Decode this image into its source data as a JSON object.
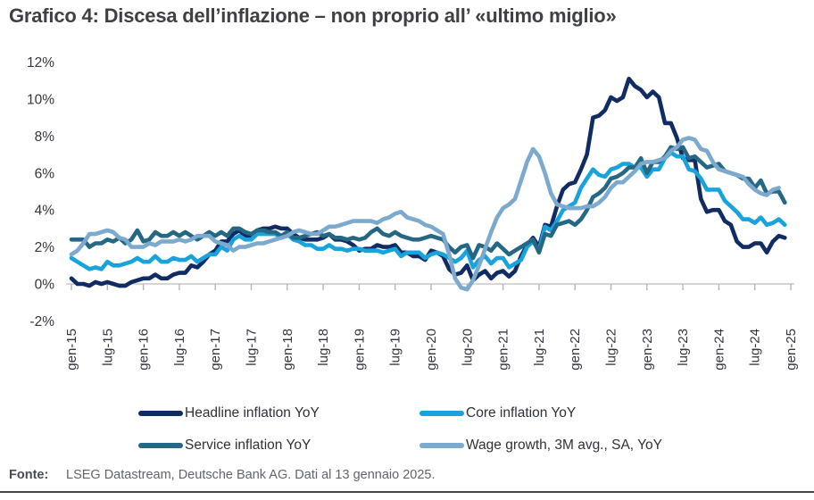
{
  "title": "Grafico 4: Discesa dell’inflazione – non proprio all’ «ultimo miglio»",
  "footer": {
    "label": "Fonte:",
    "text": "LSEG Datastream, Deutsche Bank AG. Dati al 13 gennaio 2025."
  },
  "chart_data": {
    "type": "line",
    "title": "Grafico 4: Discesa dell’inflazione – non proprio all’ «ultimo miglio»",
    "xlabel": "",
    "ylabel": "",
    "ylim": [
      -2,
      12
    ],
    "grid": false,
    "legend_position": "bottom",
    "x_unit": "monthly, gen-15 through dic-24",
    "x_tick_every_months": 6,
    "x_tick_labels": [
      "gen-15",
      "lug-15",
      "gen-16",
      "lug-16",
      "gen-17",
      "lug-17",
      "gen-18",
      "lug-18",
      "gen-19",
      "lug-19",
      "gen-20",
      "lug-20",
      "gen-21",
      "lug-21",
      "gen-22",
      "lug-22",
      "gen-23",
      "lug-23",
      "gen-24",
      "lug-24",
      "gen-25"
    ],
    "y_ticks": [
      {
        "label": "12%",
        "value": 12
      },
      {
        "label": "10%",
        "value": 10
      },
      {
        "label": "8%",
        "value": 8
      },
      {
        "label": "6%",
        "value": 6
      },
      {
        "label": "4%",
        "value": 4
      },
      {
        "label": "2%",
        "value": 2
      },
      {
        "label": "0%",
        "value": 0
      },
      {
        "label": "-2%",
        "value": -2
      }
    ],
    "series": [
      {
        "name": "Headline inflation YoY",
        "color": "#102c63",
        "values": [
          0.3,
          0.0,
          0.0,
          -0.1,
          0.1,
          0.0,
          0.1,
          0.0,
          -0.1,
          -0.1,
          0.1,
          0.2,
          0.3,
          0.3,
          0.5,
          0.3,
          0.3,
          0.5,
          0.6,
          0.6,
          1.0,
          0.9,
          1.2,
          1.6,
          1.8,
          2.3,
          2.3,
          2.7,
          2.9,
          2.6,
          2.6,
          2.9,
          3.0,
          3.0,
          3.1,
          3.0,
          3.0,
          2.7,
          2.5,
          2.4,
          2.4,
          2.4,
          2.5,
          2.7,
          2.4,
          2.4,
          2.3,
          2.1,
          1.8,
          1.9,
          1.9,
          2.1,
          2.0,
          2.0,
          2.1,
          1.7,
          1.7,
          1.5,
          1.5,
          1.3,
          1.8,
          1.7,
          1.5,
          0.8,
          0.5,
          0.6,
          1.0,
          0.2,
          0.5,
          0.7,
          0.3,
          0.6,
          0.7,
          0.4,
          0.7,
          1.5,
          2.1,
          2.5,
          2.0,
          3.2,
          3.1,
          4.2,
          5.1,
          5.4,
          5.5,
          6.2,
          7.0,
          9.0,
          9.1,
          9.4,
          10.1,
          9.9,
          10.1,
          11.1,
          10.7,
          10.5,
          10.1,
          10.4,
          10.1,
          8.7,
          8.7,
          7.9,
          6.8,
          6.7,
          6.7,
          4.6,
          3.9,
          4.0,
          4.0,
          3.4,
          3.2,
          2.3,
          2.0,
          2.0,
          2.2,
          2.2,
          1.7,
          2.3,
          2.6,
          2.5
        ]
      },
      {
        "name": "Core inflation YoY",
        "color": "#18a3dd",
        "values": [
          1.4,
          1.2,
          1.0,
          0.8,
          0.9,
          0.8,
          1.2,
          1.0,
          1.0,
          1.1,
          1.2,
          1.4,
          1.2,
          1.2,
          1.5,
          1.2,
          1.2,
          1.4,
          1.3,
          1.3,
          1.5,
          1.2,
          1.4,
          1.6,
          1.6,
          2.0,
          1.8,
          2.4,
          2.6,
          2.4,
          2.4,
          2.7,
          2.7,
          2.7,
          2.7,
          2.5,
          2.7,
          2.4,
          2.3,
          2.1,
          2.1,
          1.9,
          1.9,
          2.1,
          1.9,
          1.9,
          1.8,
          1.9,
          1.9,
          1.8,
          1.8,
          1.8,
          1.7,
          1.8,
          1.9,
          1.5,
          1.7,
          1.7,
          1.7,
          1.4,
          1.6,
          1.7,
          1.6,
          1.4,
          1.2,
          1.4,
          1.8,
          0.9,
          1.3,
          1.5,
          1.1,
          1.4,
          1.4,
          0.9,
          1.1,
          1.3,
          2.0,
          2.3,
          1.8,
          3.1,
          2.9,
          3.4,
          4.0,
          4.2,
          4.4,
          5.2,
          5.7,
          6.2,
          5.9,
          5.8,
          6.2,
          6.3,
          6.5,
          6.5,
          6.3,
          6.3,
          5.8,
          6.2,
          6.2,
          6.8,
          7.1,
          6.9,
          6.9,
          6.2,
          6.1,
          5.7,
          5.1,
          5.1,
          5.1,
          4.5,
          4.2,
          3.9,
          3.5,
          3.5,
          3.3,
          3.6,
          3.2,
          3.3,
          3.5,
          3.2
        ]
      },
      {
        "name": "Service inflation YoY",
        "color": "#266884",
        "values": [
          2.4,
          2.4,
          2.4,
          2.0,
          2.2,
          2.2,
          2.4,
          2.3,
          2.5,
          2.2,
          2.4,
          2.9,
          2.3,
          2.4,
          2.8,
          2.6,
          2.6,
          2.8,
          2.6,
          2.8,
          2.6,
          2.4,
          2.6,
          2.8,
          2.6,
          2.8,
          2.6,
          3.0,
          3.0,
          2.8,
          2.7,
          2.9,
          2.9,
          2.8,
          2.8,
          2.6,
          2.8,
          2.5,
          2.5,
          2.6,
          2.7,
          2.8,
          2.6,
          2.7,
          2.5,
          2.5,
          2.4,
          2.5,
          2.4,
          2.5,
          2.8,
          3.0,
          2.7,
          2.6,
          2.8,
          2.6,
          2.5,
          2.4,
          2.4,
          2.5,
          2.6,
          2.5,
          2.4,
          2.0,
          1.7,
          2.0,
          2.1,
          1.4,
          2.1,
          2.0,
          1.8,
          2.2,
          1.9,
          1.6,
          1.8,
          2.0,
          2.2,
          2.4,
          1.7,
          2.7,
          2.6,
          3.2,
          3.3,
          3.4,
          3.2,
          3.5,
          4.0,
          4.7,
          4.9,
          5.2,
          5.7,
          5.8,
          6.0,
          6.3,
          6.3,
          6.8,
          6.0,
          6.6,
          6.6,
          6.9,
          7.4,
          7.3,
          7.4,
          6.8,
          6.9,
          6.6,
          6.3,
          6.4,
          6.5,
          6.1,
          6.0,
          5.9,
          5.7,
          5.7,
          5.2,
          5.6,
          4.9,
          5.0,
          5.0,
          4.4
        ]
      },
      {
        "name": "Wage growth, 3M avg., SA, YoY",
        "color": "#7ca9ce",
        "values": [
          1.6,
          1.8,
          2.2,
          2.7,
          2.7,
          2.8,
          2.9,
          2.8,
          2.5,
          2.4,
          2.0,
          2.0,
          2.0,
          2.2,
          2.1,
          2.3,
          2.3,
          2.3,
          2.4,
          2.3,
          2.4,
          2.6,
          2.6,
          2.6,
          2.3,
          2.2,
          2.1,
          1.8,
          2.0,
          2.0,
          2.1,
          2.2,
          2.2,
          2.3,
          2.4,
          2.5,
          2.6,
          2.8,
          2.9,
          2.8,
          2.7,
          2.7,
          2.9,
          3.1,
          3.1,
          3.2,
          3.3,
          3.4,
          3.4,
          3.4,
          3.4,
          3.3,
          3.5,
          3.6,
          3.8,
          3.9,
          3.6,
          3.5,
          3.4,
          3.2,
          3.1,
          2.9,
          2.7,
          1.6,
          0.3,
          -0.2,
          -0.3,
          0.2,
          1.0,
          1.9,
          2.8,
          3.6,
          4.1,
          4.3,
          4.6,
          5.6,
          6.6,
          7.3,
          6.9,
          6.0,
          4.9,
          4.3,
          4.2,
          4.1,
          4.1,
          4.1,
          4.2,
          4.2,
          4.4,
          4.7,
          5.2,
          5.5,
          5.5,
          5.8,
          6.1,
          6.5,
          6.6,
          6.6,
          6.7,
          6.8,
          7.2,
          7.4,
          7.8,
          7.9,
          7.8,
          7.3,
          7.2,
          6.6,
          6.2,
          6.1,
          6.0,
          5.9,
          5.8,
          5.4,
          5.1,
          4.9,
          4.8,
          5.1,
          5.2
        ]
      }
    ]
  }
}
